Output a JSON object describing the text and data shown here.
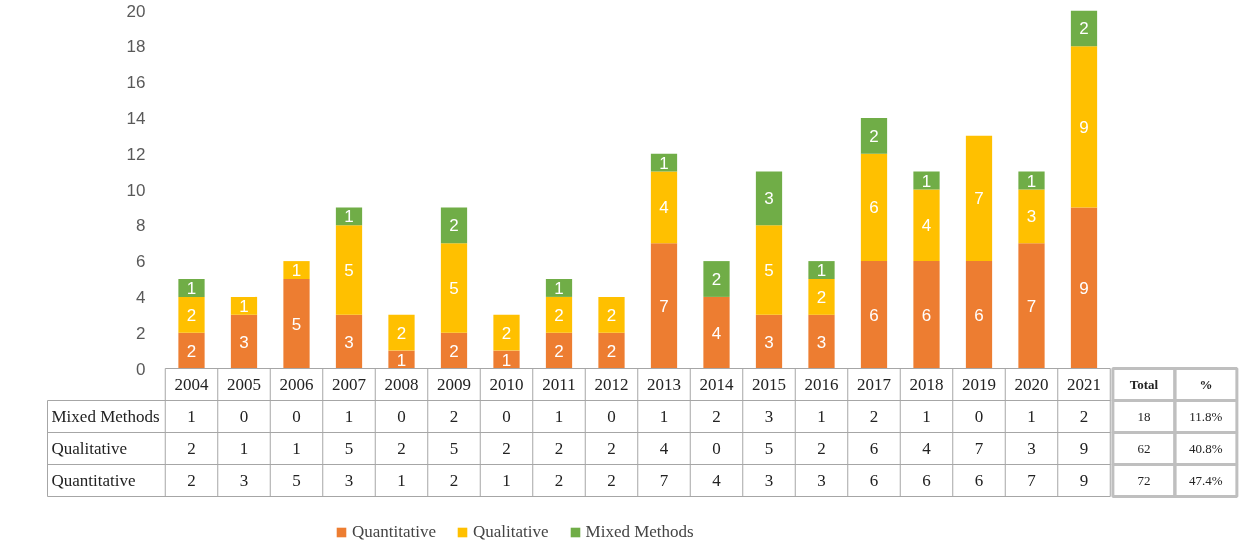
{
  "chart_data": {
    "type": "bar",
    "stacked": true,
    "grid": false,
    "legend": "bottom",
    "categories": [
      "2004",
      "2005",
      "2006",
      "2007",
      "2008",
      "2009",
      "2010",
      "2011",
      "2012",
      "2013",
      "2014",
      "2015",
      "2016",
      "2017",
      "2018",
      "2019",
      "2020",
      "2021"
    ],
    "series": [
      {
        "name": "Quantitative",
        "color": "#ed7d31",
        "values": [
          2,
          3,
          5,
          3,
          1,
          2,
          1,
          2,
          2,
          7,
          4,
          3,
          3,
          6,
          6,
          6,
          7,
          9
        ],
        "value_labels": [
          "2",
          "3",
          "5",
          "3",
          "1",
          "2",
          "1",
          "2",
          "2",
          "7",
          "4",
          "3",
          "3",
          "6",
          "6",
          "6",
          "7",
          "9"
        ]
      },
      {
        "name": "Qualitative",
        "color": "#ffc000",
        "values": [
          2,
          1,
          1,
          5,
          2,
          5,
          2,
          2,
          2,
          4,
          0,
          5,
          2,
          6,
          4,
          7,
          3,
          9
        ],
        "value_labels": [
          "2",
          "1",
          "1",
          "5",
          "2",
          "5",
          "2",
          "2",
          "2",
          "4",
          null,
          "5",
          "2",
          "6",
          "4",
          "7",
          "3",
          "9"
        ]
      },
      {
        "name": "Mixed Methods",
        "color": "#70ad47",
        "values": [
          1,
          0,
          0,
          1,
          0,
          2,
          0,
          1,
          0,
          1,
          2,
          3,
          1,
          2,
          1,
          0,
          1,
          2
        ],
        "value_labels": [
          "1",
          null,
          null,
          "1",
          null,
          "2",
          null,
          "1",
          null,
          "1",
          "2",
          "3",
          "1",
          "2",
          "1",
          null,
          "1",
          "2"
        ]
      }
    ],
    "ylim": [
      0,
      20
    ],
    "yticks": [
      0,
      2,
      4,
      6,
      8,
      10,
      12,
      14,
      16,
      18,
      20
    ],
    "annotations": [
      "Total",
      "%",
      "1",
      "0",
      "0",
      "1",
      "0",
      "2",
      "0",
      "1",
      "0",
      "1",
      "2",
      "3",
      "1",
      "2",
      "1",
      "0",
      "1",
      "2",
      "18",
      "11.8%",
      "2",
      "1",
      "1",
      "5",
      "2",
      "5",
      "2",
      "2",
      "2",
      "4",
      "0",
      "5",
      "2",
      "6",
      "4",
      "7",
      "3",
      "9",
      "62",
      "40.8%",
      "2",
      "3",
      "5",
      "3",
      "1",
      "2",
      "1",
      "2",
      "2",
      "7",
      "4",
      "3",
      "3",
      "6",
      "6",
      "6",
      "7",
      "9",
      "72",
      "47.4%"
    ]
  }
}
